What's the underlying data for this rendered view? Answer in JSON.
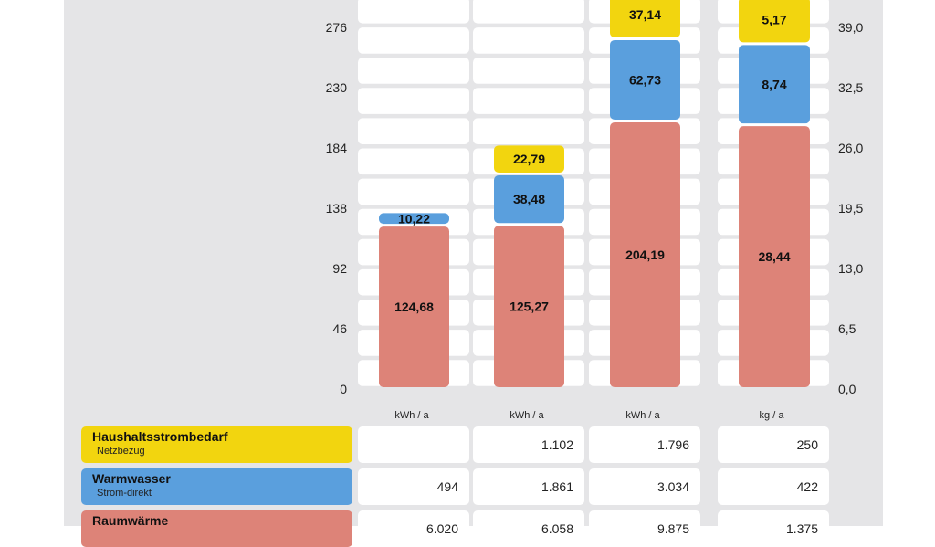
{
  "colors": {
    "yellow": "#f2d50f",
    "blue": "#5a9fdd",
    "red": "#dd8378",
    "panel": "#e5e5e7",
    "cell": "#ffffff"
  },
  "chart_data": {
    "type": "bar",
    "stacked": true,
    "left_axis": {
      "ticks": [
        "0",
        "46",
        "92",
        "138",
        "184",
        "230",
        "276"
      ],
      "ylim": [
        0,
        276
      ]
    },
    "right_axis": {
      "ticks": [
        "0,0",
        "6,5",
        "13,0",
        "19,5",
        "26,0",
        "32,5",
        "39,0"
      ],
      "ylim": [
        0,
        39
      ]
    },
    "units": [
      "kWh / a",
      "kWh / a",
      "kWh / a",
      "kg / a"
    ],
    "series": [
      {
        "name": "Raumwärme",
        "color": "#dd8378",
        "values": [
          124.68,
          125.27,
          204.19,
          28.44
        ],
        "labels": [
          "124,68",
          "125,27",
          "204,19",
          "28,44"
        ]
      },
      {
        "name": "Warmwasser",
        "color": "#5a9fdd",
        "values": [
          10.22,
          38.48,
          62.73,
          8.74
        ],
        "labels": [
          "10,22",
          "38,48",
          "62,73",
          "8,74"
        ]
      },
      {
        "name": "Haushaltsstrombedarf",
        "color": "#f2d50f",
        "values": [
          0,
          22.79,
          37.14,
          5.17
        ],
        "labels": [
          "",
          "22,79",
          "37,14",
          "5,17"
        ]
      }
    ]
  },
  "legend": [
    {
      "name": "Haushaltsstrombedarf",
      "sub": "Netzbezug",
      "color": "#f2d50f",
      "cells": [
        "",
        "1.102",
        "1.796",
        "250"
      ]
    },
    {
      "name": "Warmwasser",
      "sub": "Strom-direkt",
      "color": "#5a9fdd",
      "cells": [
        "494",
        "1.861",
        "3.034",
        "422"
      ]
    },
    {
      "name": "Raumwärme",
      "sub": "",
      "color": "#dd8378",
      "cells": [
        "6.020",
        "6.058",
        "9.875",
        "1.375"
      ]
    }
  ]
}
